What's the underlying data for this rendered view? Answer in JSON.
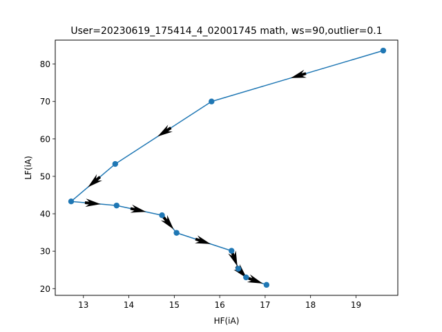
{
  "chart_data": {
    "type": "line",
    "title": "User=20230619_175414_4_02001745 math, ws=90,outlier=0.1",
    "xlabel": "HF(iA)",
    "ylabel": "LF(iA)",
    "xlim": [
      12.38,
      19.92
    ],
    "ylim": [
      18.2,
      86.4
    ],
    "xticks": [
      13,
      14,
      15,
      16,
      17,
      18,
      19
    ],
    "yticks": [
      20,
      30,
      40,
      50,
      60,
      70,
      80
    ],
    "grid": false,
    "legend": "none",
    "series": [
      {
        "x": [
          19.6,
          15.82,
          13.7,
          12.73,
          13.73,
          14.73,
          15.05,
          16.26,
          16.41,
          16.58,
          17.03
        ],
        "y": [
          83.6,
          70.0,
          53.3,
          43.3,
          42.2,
          39.6,
          34.9,
          30.1,
          25.3,
          23.0,
          21.0
        ],
        "color": "#1f77b4"
      }
    ],
    "arrow_color": "#000000"
  }
}
